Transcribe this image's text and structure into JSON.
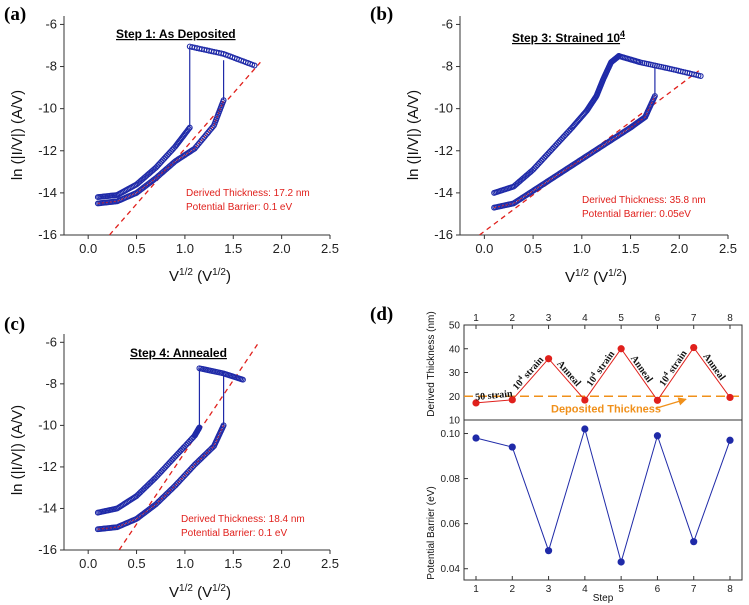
{
  "colors": {
    "blue": "#1f2aa8",
    "red": "#e0201c",
    "orange": "#f0901a",
    "axis": "#333333"
  },
  "chart_data": [
    {
      "type": "scatter",
      "panel": "(a)",
      "title": "Step 1: As Deposited",
      "xlabel": "V<sup>1/2</sup> (V<sup>1/2</sup>)",
      "xlabel_main": "V",
      "xlabel_sup": "1/2",
      "xlabel_unit_open": " (V",
      "xlabel_unit_sup": "1/2",
      "xlabel_unit_close": ")",
      "ylabel": "ln (|I/V|) (A/V)",
      "xlim": [
        -0.25,
        2.5
      ],
      "ylim": [
        -16,
        -5.6
      ],
      "xticks": [
        "0.0",
        "0.5",
        "1.0",
        "1.5",
        "2.0",
        "2.5"
      ],
      "yticks": [
        "-16",
        "-14",
        "-12",
        "-10",
        "-8",
        "-6"
      ],
      "annotations": [
        "Derived Thickness: 17.2 nm",
        "Potential Barrier: 0.1 eV"
      ],
      "fit_line": [
        [
          0.22,
          -16
        ],
        [
          1.78,
          -7.8
        ]
      ],
      "upper_branch": [
        [
          0.1,
          -14.2
        ],
        [
          0.3,
          -14.1
        ],
        [
          0.5,
          -13.6
        ],
        [
          0.7,
          -12.8
        ],
        [
          0.9,
          -11.8
        ],
        [
          1.05,
          -10.9
        ]
      ],
      "lower_branch": [
        [
          0.1,
          -14.5
        ],
        [
          0.3,
          -14.4
        ],
        [
          0.5,
          -14.0
        ],
        [
          0.7,
          -13.3
        ],
        [
          0.9,
          -12.5
        ],
        [
          1.1,
          -11.9
        ],
        [
          1.3,
          -10.8
        ],
        [
          1.4,
          -9.6
        ]
      ],
      "jumps": [
        [
          [
            1.05,
            -10.9
          ],
          [
            1.05,
            -7.05
          ]
        ],
        [
          [
            1.4,
            -9.6
          ],
          [
            1.4,
            -7.7
          ]
        ]
      ],
      "top_branch": [
        [
          1.05,
          -7.05
        ],
        [
          1.4,
          -7.4
        ],
        [
          1.72,
          -7.95
        ]
      ]
    },
    {
      "type": "scatter",
      "panel": "(b)",
      "title": "Step 3: Strained 10",
      "title_sup": "4",
      "xlabel_main": "V",
      "xlabel_sup": "1/2",
      "xlabel_unit_open": " (V",
      "xlabel_unit_sup": "1/2",
      "xlabel_unit_close": ")",
      "ylabel": "ln (|I/V|) (A/V)",
      "xlim": [
        -0.25,
        2.5
      ],
      "ylim": [
        -16,
        -5.6
      ],
      "xticks": [
        "0.0",
        "0.5",
        "1.0",
        "1.5",
        "2.0",
        "2.5"
      ],
      "yticks": [
        "-16",
        "-14",
        "-12",
        "-10",
        "-8",
        "-6"
      ],
      "annotations": [
        "Derived Thickness: 35.8 nm",
        "Potential Barrier: 0.05eV"
      ],
      "fit_line": [
        [
          -0.05,
          -16
        ],
        [
          2.2,
          -8.2
        ]
      ],
      "upper_branch": [
        [
          0.1,
          -14.0
        ],
        [
          0.3,
          -13.7
        ],
        [
          0.5,
          -12.9
        ],
        [
          0.7,
          -11.9
        ],
        [
          0.9,
          -10.9
        ],
        [
          1.05,
          -10.1
        ],
        [
          1.15,
          -9.4
        ],
        [
          1.22,
          -8.6
        ],
        [
          1.3,
          -7.8
        ],
        [
          1.38,
          -7.5
        ]
      ],
      "lower_branch": [
        [
          0.1,
          -14.7
        ],
        [
          0.3,
          -14.5
        ],
        [
          0.5,
          -13.9
        ],
        [
          0.7,
          -13.3
        ],
        [
          0.9,
          -12.7
        ],
        [
          1.1,
          -12.1
        ],
        [
          1.3,
          -11.5
        ],
        [
          1.5,
          -10.9
        ],
        [
          1.65,
          -10.4
        ],
        [
          1.75,
          -9.4
        ]
      ],
      "jumps": [
        [
          [
            1.75,
            -9.4
          ],
          [
            1.75,
            -8.0
          ]
        ]
      ],
      "top_branch": [
        [
          1.38,
          -7.5
        ],
        [
          1.6,
          -7.8
        ],
        [
          1.9,
          -8.1
        ],
        [
          2.22,
          -8.45
        ]
      ]
    },
    {
      "type": "scatter",
      "panel": "(c)",
      "title": "Step 4: Annealed",
      "xlabel_main": "V",
      "xlabel_sup": "1/2",
      "xlabel_unit_open": " (V",
      "xlabel_unit_sup": "1/2",
      "xlabel_unit_close": ")",
      "ylabel": "ln (|I/V|) (A/V)",
      "xlim": [
        -0.25,
        2.5
      ],
      "ylim": [
        -16,
        -5.6
      ],
      "xticks": [
        "0.0",
        "0.5",
        "1.0",
        "1.5",
        "2.0",
        "2.5"
      ],
      "yticks": [
        "-16",
        "-14",
        "-12",
        "-10",
        "-8",
        "-6"
      ],
      "annotations": [
        "Derived Thickness: 18.4 nm",
        "Potential Barrier: 0.1 eV"
      ],
      "fit_line": [
        [
          0.32,
          -16
        ],
        [
          1.75,
          -6.1
        ]
      ],
      "upper_branch": [
        [
          0.1,
          -14.2
        ],
        [
          0.3,
          -14.0
        ],
        [
          0.5,
          -13.4
        ],
        [
          0.7,
          -12.5
        ],
        [
          0.9,
          -11.5
        ],
        [
          1.1,
          -10.5
        ],
        [
          1.15,
          -10.1
        ]
      ],
      "lower_branch": [
        [
          0.1,
          -15.0
        ],
        [
          0.3,
          -14.9
        ],
        [
          0.5,
          -14.5
        ],
        [
          0.7,
          -13.8
        ],
        [
          0.9,
          -12.9
        ],
        [
          1.1,
          -11.9
        ],
        [
          1.3,
          -11.0
        ],
        [
          1.4,
          -10.0
        ]
      ],
      "jumps": [
        [
          [
            1.15,
            -10.1
          ],
          [
            1.15,
            -7.25
          ]
        ],
        [
          [
            1.4,
            -10.0
          ],
          [
            1.4,
            -7.45
          ]
        ]
      ],
      "top_branch": [
        [
          1.15,
          -7.25
        ],
        [
          1.4,
          -7.5
        ],
        [
          1.6,
          -7.8
        ]
      ]
    },
    {
      "type": "line",
      "panel": "(d)",
      "xlabel": "Step",
      "steps": [
        1,
        2,
        3,
        4,
        5,
        6,
        7,
        8
      ],
      "xticks": [
        "1",
        "2",
        "3",
        "4",
        "5",
        "6",
        "7",
        "8"
      ],
      "top_xticks": [
        "1",
        "2",
        "3",
        "4",
        "5",
        "6",
        "7",
        "8"
      ],
      "series": [
        {
          "name": "Derived Thickness (nm)",
          "ylabel": "Derived Thickness (nm)",
          "values": [
            17.2,
            18.5,
            35.8,
            18.4,
            40.0,
            18.3,
            40.5,
            19.5
          ],
          "ylim": [
            10,
            50
          ],
          "yticks": [
            "10",
            "20",
            "30",
            "40",
            "50"
          ]
        },
        {
          "name": "Potential Barrier (eV)",
          "ylabel": "Potential Barrier (eV)",
          "values": [
            0.098,
            0.094,
            0.048,
            0.102,
            0.043,
            0.099,
            0.052,
            0.097
          ],
          "ylim": [
            0.035,
            0.106
          ],
          "yticks": [
            "0.04",
            "0.06",
            "0.08",
            "0.10"
          ]
        }
      ],
      "reference_line": {
        "label": "Deposited Thickness",
        "value": 20
      },
      "segment_labels": [
        {
          "text": "50 strain"
        },
        {
          "text": "10",
          "sup": "4",
          "tail": " strain"
        },
        {
          "text": "Anneal"
        },
        {
          "text": "10",
          "sup": "4",
          "tail": " strain"
        },
        {
          "text": "Anneal"
        },
        {
          "text": "10",
          "sup": "4",
          "tail": " strain"
        },
        {
          "text": "Anneal"
        }
      ]
    }
  ]
}
